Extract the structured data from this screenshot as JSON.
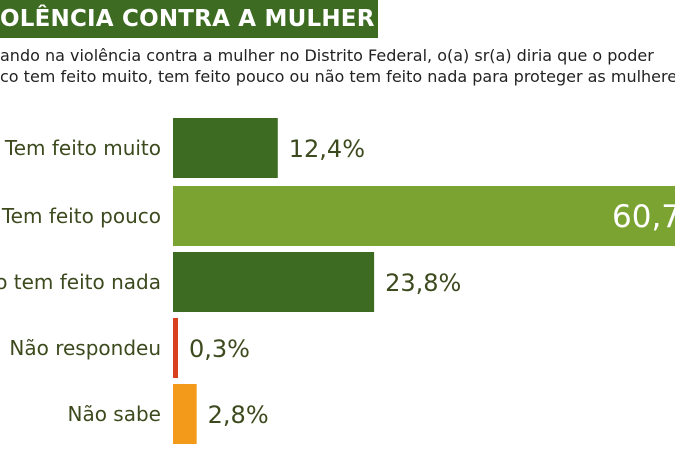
{
  "header": {
    "title": "OLÊNCIA CONTRA A MULHER"
  },
  "question": {
    "line1": "ando na violência contra a mulher no Distrito Federal, o(a) sr(a) diria que o poder",
    "line2": "co tem feito muito, tem feito pouco ou não tem feito nada para proteger as mulheres?"
  },
  "chart_data": {
    "type": "bar",
    "orientation": "horizontal",
    "categories": [
      "Tem feito muito",
      "Tem feito pouco",
      "o tem feito nada",
      "Não respondeu",
      "Não sabe"
    ],
    "values": [
      12.4,
      60.7,
      23.8,
      0.3,
      2.8
    ],
    "value_labels": [
      "12,4%",
      "60,7",
      "23,8%",
      "0,3%",
      "2,8%"
    ],
    "colors": [
      "#3e6b22",
      "#7aa332",
      "#3e6b22",
      "#d9411e",
      "#f39a1b"
    ],
    "label_color": "#3c4a1e",
    "title": "",
    "xlabel": "",
    "ylabel": "",
    "xlim": [
      0,
      60.7
    ],
    "grid": false,
    "legend": "none"
  }
}
